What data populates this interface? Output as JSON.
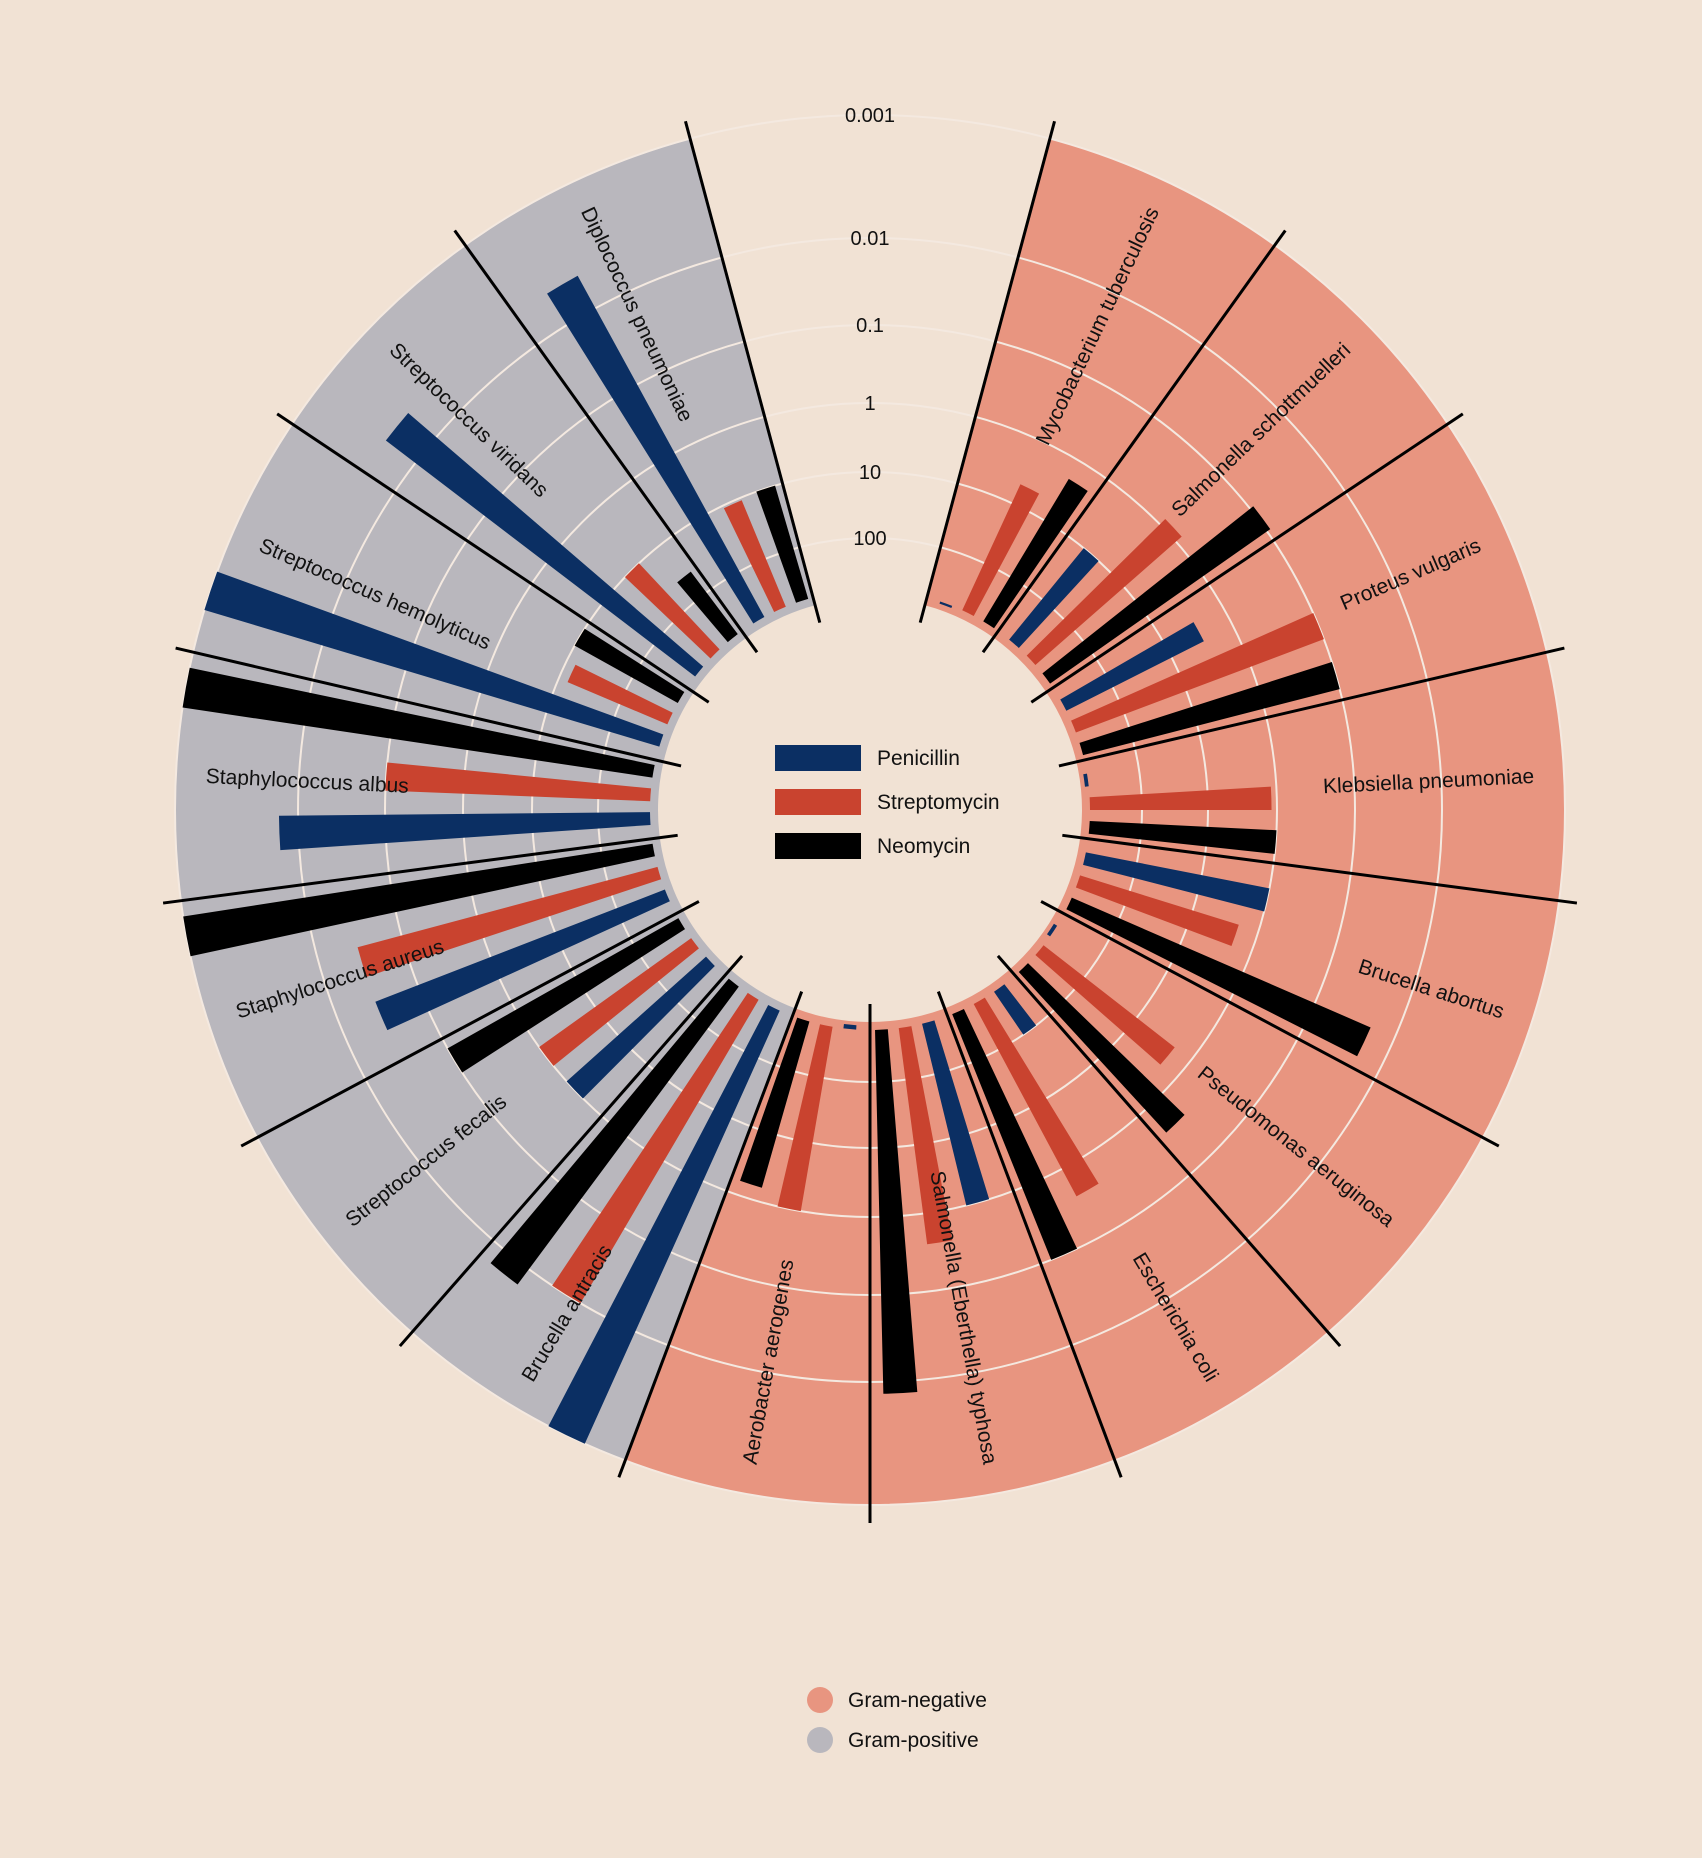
{
  "colors": {
    "background": "#f1e2d4",
    "gram_negative": "#e89580",
    "gram_positive": "#b9b7bd",
    "penicillin": "#0b2f63",
    "streptomycin": "#c9432f",
    "neomycin": "#000000",
    "grid": "#f4e9e0"
  },
  "legend": {
    "antibiotics": [
      {
        "label": "Penicillin",
        "color_key": "penicillin"
      },
      {
        "label": "Streptomycin",
        "color_key": "streptomycin"
      },
      {
        "label": "Neomycin",
        "color_key": "neomycin"
      }
    ],
    "gram": [
      {
        "label": "Gram-negative",
        "color_key": "gram_negative"
      },
      {
        "label": "Gram-positive",
        "color_key": "gram_positive"
      }
    ]
  },
  "chart_data": {
    "type": "bar",
    "layout": "radial",
    "scale": "log",
    "title": "",
    "value_unit": "minimum inhibitory concentration",
    "axis_ticks": [
      "0.001",
      "0.01",
      "0.1",
      "1",
      "10",
      "100"
    ],
    "axis_range": [
      0.001,
      1000
    ],
    "series_names": [
      "Penicillin",
      "Streptomycin",
      "Neomycin"
    ],
    "bacteria": [
      {
        "name": "Mycobacterium tuberculosis",
        "gram": "negative",
        "values": [
          800,
          5,
          2
        ]
      },
      {
        "name": "Salmonella schottmuelleri",
        "gram": "negative",
        "values": [
          10,
          0.8,
          0.09
        ]
      },
      {
        "name": "Proteus vulgaris",
        "gram": "negative",
        "values": [
          3,
          0.1,
          0.1
        ]
      },
      {
        "name": "Klebsiella pneumoniae",
        "gram": "negative",
        "values": [
          850,
          1.2,
          1
        ]
      },
      {
        "name": "Brucella abortus",
        "gram": "negative",
        "values": [
          1,
          2,
          0.02
        ]
      },
      {
        "name": "Pseudomonas aeruginosa",
        "gram": "negative",
        "values": [
          850,
          2,
          0.4
        ]
      },
      {
        "name": "Escherichia coli",
        "gram": "negative",
        "values": [
          100,
          0.4,
          0.1
        ]
      },
      {
        "name": "Salmonella (Eberthella) typhosa",
        "gram": "negative",
        "values": [
          1,
          0.4,
          0.008
        ]
      },
      {
        "name": "Aerobacter aerogenes",
        "gram": "negative",
        "values": [
          870,
          1,
          1.6
        ]
      },
      {
        "name": "Brucella antracis",
        "gram": "positive",
        "values": [
          0.001,
          0.01,
          0.007
        ]
      },
      {
        "name": "Streptococcus fecalis",
        "gram": "positive",
        "values": [
          1,
          1,
          0.1
        ]
      },
      {
        "name": "Staphylococcus aureus",
        "gram": "positive",
        "values": [
          0.03,
          0.03,
          0.001
        ]
      },
      {
        "name": "Staphylococcus albus",
        "gram": "positive",
        "values": [
          0.007,
          0.1,
          0.001
        ]
      },
      {
        "name": "Streptococcus hemolyticus",
        "gram": "positive",
        "values": [
          0.001,
          14,
          10
        ]
      },
      {
        "name": "Streptococcus viridans",
        "gram": "positive",
        "values": [
          0.005,
          10,
          40
        ]
      },
      {
        "name": "Diplococcus pneumoniae",
        "gram": "positive",
        "values": [
          0.005,
          11,
          10
        ]
      }
    ]
  }
}
